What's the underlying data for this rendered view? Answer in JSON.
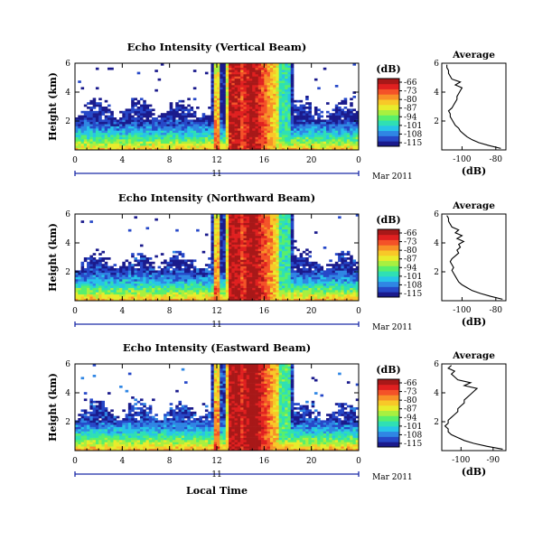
{
  "chart_data": [
    {
      "type": "heatmap",
      "title": "Echo Intensity (Vertical Beam)",
      "ylabel": "Height (km)",
      "x_ticks": [
        "0",
        "4",
        "8",
        "12",
        "16",
        "20",
        "0"
      ],
      "x_day": "11",
      "x_date": "Mar 2011",
      "xlim": [
        0,
        24
      ],
      "y_ticks": [
        "2",
        "4",
        "6"
      ],
      "ylim": [
        0,
        6
      ],
      "colorbar": {
        "unit": "(dB)",
        "labels": [
          "-66",
          "-73",
          "-80",
          "-87",
          "-94",
          "-101",
          "-108",
          "-115"
        ]
      },
      "profile": {
        "title": "Average",
        "xlabel": "(dB)",
        "x_ticks": [
          "-100",
          "-80"
        ],
        "xlim": [
          -112,
          -74
        ],
        "heights": [
          0.1,
          0.3,
          0.5,
          0.7,
          0.9,
          1.1,
          1.3,
          1.5,
          1.7,
          1.9,
          2.1,
          2.3,
          2.5,
          2.7,
          2.9,
          3.1,
          3.3,
          3.5,
          3.7,
          3.9,
          4.1,
          4.3,
          4.5,
          4.7,
          4.9,
          5.1,
          5.3,
          5.5,
          5.7,
          5.9
        ],
        "values": [
          -77,
          -84,
          -90,
          -94,
          -97,
          -99,
          -101,
          -102,
          -104,
          -105,
          -106,
          -107,
          -107,
          -108,
          -106,
          -105,
          -104,
          -103,
          -103,
          -102,
          -101,
          -100,
          -104,
          -101,
          -106,
          -107,
          -108,
          -108,
          -109,
          -109
        ]
      }
    },
    {
      "type": "heatmap",
      "title": "Echo Intensity (Northward Beam)",
      "ylabel": "Height (km)",
      "x_ticks": [
        "0",
        "4",
        "8",
        "12",
        "16",
        "20",
        "0"
      ],
      "x_day": "11",
      "x_date": "Mar 2011",
      "xlim": [
        0,
        24
      ],
      "y_ticks": [
        "2",
        "4",
        "6"
      ],
      "ylim": [
        0,
        6
      ],
      "colorbar": {
        "unit": "(dB)",
        "labels": [
          "-66",
          "-73",
          "-80",
          "-87",
          "-94",
          "-101",
          "-108",
          "-115"
        ]
      },
      "profile": {
        "title": "Average",
        "xlabel": "(dB)",
        "x_ticks": [
          "-100",
          "-80"
        ],
        "xlim": [
          -112,
          -74
        ],
        "heights": [
          0.1,
          0.3,
          0.5,
          0.7,
          0.9,
          1.1,
          1.3,
          1.5,
          1.7,
          1.9,
          2.1,
          2.3,
          2.5,
          2.7,
          2.9,
          3.1,
          3.3,
          3.5,
          3.7,
          3.9,
          4.1,
          4.3,
          4.5,
          4.7,
          4.9,
          5.1,
          5.3,
          5.5,
          5.7,
          5.9
        ],
        "values": [
          -76,
          -83,
          -89,
          -94,
          -97,
          -100,
          -102,
          -103,
          -104,
          -105,
          -106,
          -105,
          -106,
          -107,
          -106,
          -104,
          -102,
          -103,
          -101,
          -102,
          -99,
          -103,
          -100,
          -104,
          -102,
          -106,
          -107,
          -108,
          -108,
          -109
        ]
      }
    },
    {
      "type": "heatmap",
      "title": "Echo Intensity (Eastward Beam)",
      "ylabel": "Height (km)",
      "x_ticks": [
        "0",
        "4",
        "8",
        "12",
        "16",
        "20",
        "0"
      ],
      "x_day": "11",
      "x_date": "Mar 2011",
      "xlim": [
        0,
        24
      ],
      "y_ticks": [
        "2",
        "4",
        "6"
      ],
      "ylim": [
        0,
        6
      ],
      "colorbar": {
        "unit": "(dB)",
        "labels": [
          "-66",
          "-73",
          "-80",
          "-87",
          "-94",
          "-101",
          "-108",
          "-115"
        ]
      },
      "profile": {
        "title": "Average",
        "xlabel": "(dB)",
        "x_ticks": [
          "-100",
          "-90"
        ],
        "xlim": [
          -106,
          -86
        ],
        "heights": [
          0.1,
          0.3,
          0.5,
          0.7,
          0.9,
          1.1,
          1.3,
          1.5,
          1.7,
          1.9,
          2.1,
          2.3,
          2.5,
          2.7,
          2.9,
          3.1,
          3.3,
          3.5,
          3.7,
          3.9,
          4.1,
          4.3,
          4.5,
          4.7,
          4.9,
          5.1,
          5.3,
          5.5,
          5.7,
          5.9
        ],
        "values": [
          -87,
          -92,
          -96,
          -99,
          -101,
          -103,
          -104,
          -104,
          -105,
          -104,
          -104,
          -103,
          -102,
          -101,
          -101,
          -100,
          -99,
          -99,
          -98,
          -97,
          -96,
          -95,
          -99,
          -97,
          -101,
          -102,
          -103,
          -102,
          -104,
          -103
        ]
      }
    }
  ],
  "shared": {
    "xlabel": "Local Time"
  },
  "colormap": [
    "#1a1a8c",
    "#2648c8",
    "#2f86e4",
    "#27c4e8",
    "#2fe0b4",
    "#58ef6c",
    "#a8f040",
    "#e8ec2c",
    "#f8c828",
    "#f89028",
    "#f45228",
    "#e02020",
    "#a81818"
  ]
}
